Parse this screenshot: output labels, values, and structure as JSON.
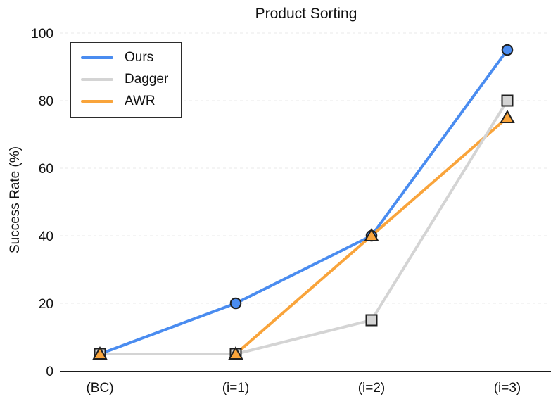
{
  "chart_data": {
    "type": "line",
    "title": "Product Sorting",
    "xlabel": "",
    "ylabel": "Success Rate (%)",
    "categories": [
      "(BC)",
      "(i=1)",
      "(i=2)",
      "(i=3)"
    ],
    "series": [
      {
        "name": "Ours",
        "values": [
          5,
          20,
          40,
          95
        ],
        "color": "#4a8cf0",
        "marker": "circle"
      },
      {
        "name": "Dagger",
        "values": [
          5,
          5,
          15,
          80
        ],
        "color": "#d4d4d4",
        "marker": "square"
      },
      {
        "name": "AWR",
        "values": [
          5,
          5,
          40,
          75
        ],
        "color": "#f9a43b",
        "marker": "triangle"
      }
    ],
    "ylim": [
      0,
      100
    ],
    "yticks": [
      0,
      20,
      40,
      60,
      80,
      100
    ],
    "grid": "horizontal-dashed",
    "legend_position": "upper-left",
    "line_draw_order": [
      "Ours",
      "AWR",
      "Dagger"
    ],
    "colors": {
      "marker_edge": "#1f1f1f",
      "axis": "#1a1a1a",
      "grid": "#e8e8e8",
      "text": "#111111",
      "legend_border": "#2b2b2b",
      "background": "#ffffff"
    }
  }
}
